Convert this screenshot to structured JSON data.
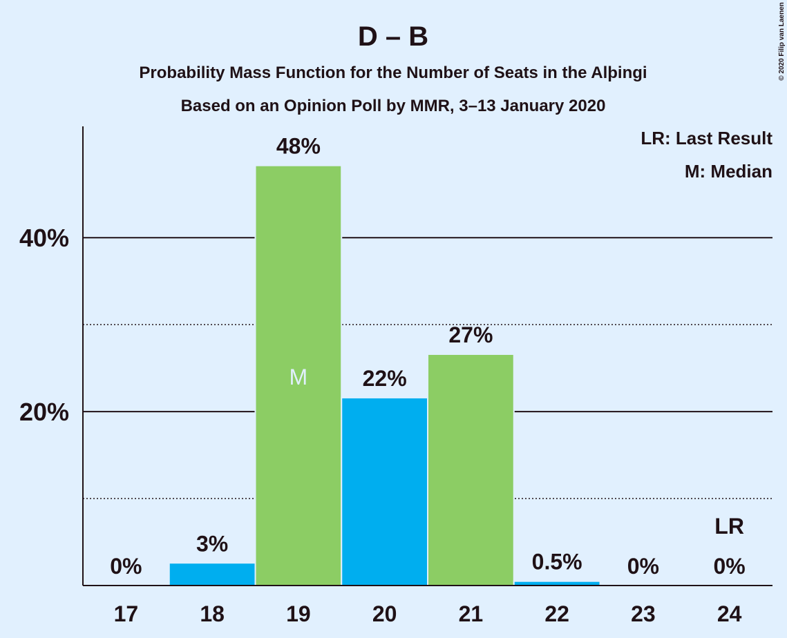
{
  "chart_data": {
    "type": "bar",
    "title": "D – B",
    "subtitle": "Probability Mass Function for the Number of Seats in the Alþingi",
    "subtitle2": "Based on an Opinion Poll by MMR, 3–13 January 2020",
    "categories": [
      "17",
      "18",
      "19",
      "20",
      "21",
      "22",
      "23",
      "24"
    ],
    "values": [
      0,
      2.6,
      48.3,
      21.6,
      26.6,
      0.5,
      0,
      0
    ],
    "value_labels": [
      "0%",
      "3%",
      "48%",
      "22%",
      "27%",
      "0.5%",
      "0%",
      "0%"
    ],
    "colors": [
      "#00aeef",
      "#00aeef",
      "#8ccd64",
      "#00aeef",
      "#8ccd64",
      "#00aeef",
      "#00aeef",
      "#00aeef"
    ],
    "ylim": [
      0,
      52.8
    ],
    "yticks": [
      {
        "value": 20,
        "label": "20%"
      },
      {
        "value": 40,
        "label": "40%"
      }
    ],
    "minor_yticks": [
      10,
      30
    ],
    "grid": true,
    "annotations": [
      {
        "category_index": 2,
        "text": "M"
      },
      {
        "category_index": 7,
        "text": "LR"
      }
    ],
    "legend": [
      "LR: Last Result",
      "M: Median"
    ],
    "copyright": "© 2020 Filip van Laenen"
  }
}
